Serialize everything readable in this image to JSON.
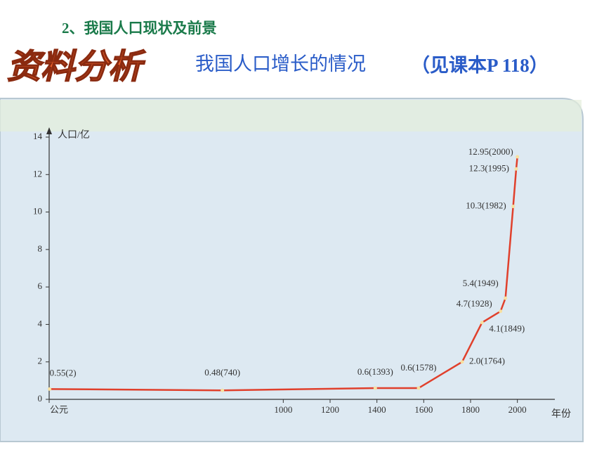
{
  "heading": "2、我国人口现状及前景",
  "banner": "资料分析",
  "title": "我国人口增长的情况",
  "reference": "（见课本P 118）",
  "chart_data": {
    "type": "line",
    "y_label": "人口/亿",
    "x_label": "年份",
    "x": [
      2,
      740,
      1393,
      1578,
      1764,
      1849,
      1928,
      1949,
      1982,
      1995,
      2000
    ],
    "series": [
      {
        "color": "#e0402c",
        "values": [
          0.55,
          0.48,
          0.6,
          0.6,
          2.0,
          4.1,
          4.7,
          5.4,
          10.3,
          12.3,
          12.95
        ],
        "value_labels": [
          "0.55(2)",
          "0.48(740)",
          "0.6(1393)",
          "0.6(1578)",
          "2.0(1764)",
          "4.1(1849)",
          "4.7(1928)",
          "5.4(1949)",
          "10.3(1982)",
          "12.3(1995)",
          "12.95(2000)"
        ]
      }
    ],
    "xlim": [
      0,
      2100
    ],
    "ylim": [
      0,
      14
    ],
    "xticks": [
      {
        "value": 0,
        "label": "公元"
      },
      1000,
      1200,
      1400,
      1600,
      1800,
      2000
    ],
    "yticks": [
      0,
      2,
      4,
      6,
      8,
      10,
      12,
      14
    ]
  }
}
